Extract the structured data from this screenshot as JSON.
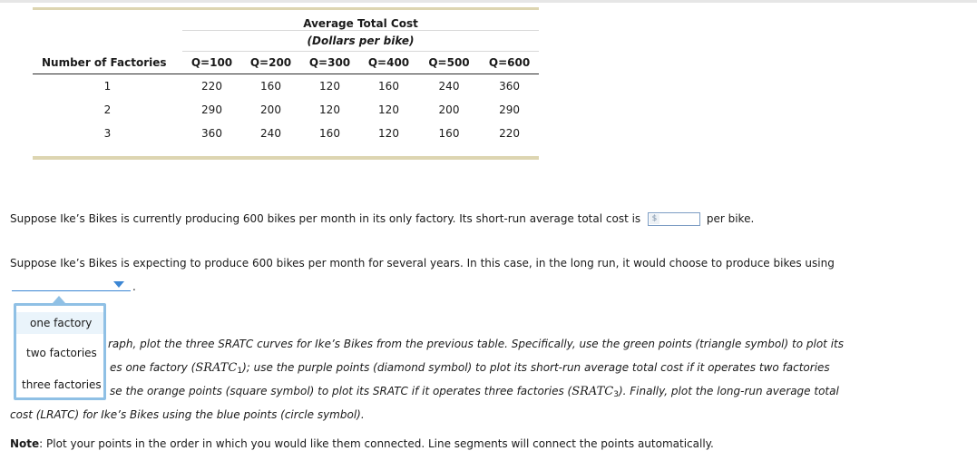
{
  "table": {
    "title": "Average Total Cost",
    "subtitle": "(Dollars per bike)",
    "row_header": "Number of Factories",
    "columns": [
      "Q=100",
      "Q=200",
      "Q=300",
      "Q=400",
      "Q=500",
      "Q=600"
    ],
    "rows": [
      {
        "factories": "1",
        "values": [
          "220",
          "160",
          "120",
          "160",
          "240",
          "360"
        ]
      },
      {
        "factories": "2",
        "values": [
          "290",
          "200",
          "120",
          "120",
          "200",
          "290"
        ]
      },
      {
        "factories": "3",
        "values": [
          "360",
          "240",
          "160",
          "120",
          "160",
          "220"
        ]
      }
    ]
  },
  "question1": {
    "before": "Suppose Ike’s Bikes is currently producing 600 bikes per month in its only factory. Its short-run average total cost is",
    "currency_symbol": "$",
    "input_value": "",
    "after": "per bike."
  },
  "question2": {
    "text": "Suppose Ike’s Bikes is expecting to produce 600 bikes per month for several years. In this case, in the long run, it would choose to produce bikes using",
    "dropdown_selected": "",
    "trailing": ".",
    "options": [
      "one factory",
      "two factories",
      "three factories"
    ]
  },
  "instructions": {
    "line1": "raph, plot the three SRATC curves for Ike’s Bikes from the previous table. Specifically, use the green points (triangle symbol) to plot its",
    "line2_pre": "es one factory (",
    "line2_math": "SRATC",
    "line2_sub": "1",
    "line2_post": "); use the purple points (diamond symbol) to plot its short-run average total cost if it operates two factories",
    "line3_pre": "se the orange points (square symbol) to plot its SRATC if it operates three factories (",
    "line3_math": "SRATC",
    "line3_sub": "3",
    "line3_post": "). Finally, plot the long-run average total",
    "line4": "cost (LRATC) for Ike’s Bikes using the blue points (circle symbol)."
  },
  "note": {
    "label": "Note",
    "text": ": Plot your points in the order in which you would like them connected. Line segments will connect the points automatically."
  },
  "colors": {
    "accent": "#3c86d4",
    "menu_border": "#8fc0e5",
    "table_bar": "#ddd5b1"
  }
}
